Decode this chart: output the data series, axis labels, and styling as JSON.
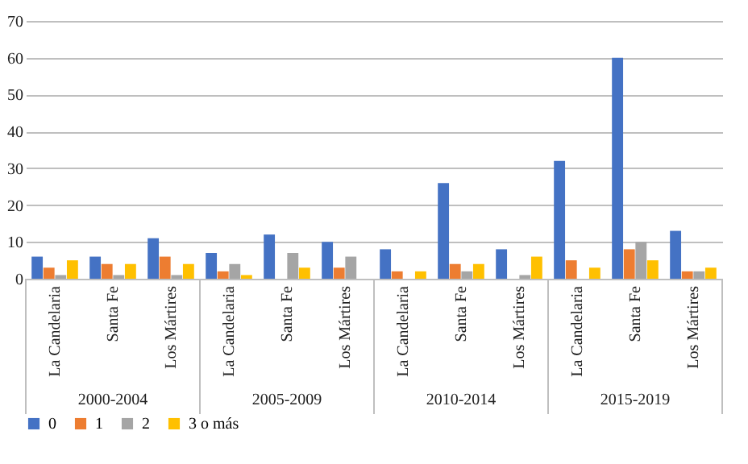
{
  "chart_data": {
    "type": "bar",
    "categories": [
      "La Candelaria",
      "Santa Fe",
      "Los Mártires",
      "La Candelaria",
      "Santa Fe",
      "Los Mártires",
      "La Candelaria",
      "Santa Fe",
      "Los Mártires",
      "La Candelaria",
      "Santa Fe",
      "Los Mártires"
    ],
    "series": [
      {
        "name": "0",
        "color": "#4472c4",
        "values": [
          6,
          6,
          11,
          7,
          12,
          10,
          8,
          26,
          8,
          32,
          60,
          13
        ]
      },
      {
        "name": "1",
        "color": "#ed7d31",
        "values": [
          3,
          4,
          6,
          2,
          0,
          3,
          2,
          4,
          0,
          5,
          8,
          2
        ]
      },
      {
        "name": "2",
        "color": "#a5a5a5",
        "values": [
          1,
          1,
          1,
          4,
          7,
          6,
          0,
          2,
          1,
          0,
          10,
          2
        ]
      },
      {
        "name": "3 o más",
        "color": "#ffc000",
        "values": [
          5,
          4,
          4,
          1,
          3,
          0,
          2,
          4,
          6,
          3,
          5,
          3
        ]
      }
    ],
    "annotations": [
      "2000-2004",
      "2005-2009",
      "2010-2014",
      "2015-2019"
    ],
    "ylim": [
      0,
      70
    ],
    "yticks": [
      0,
      10,
      20,
      30,
      40,
      50,
      60,
      70
    ],
    "grid": "y",
    "legend": "bottom"
  }
}
